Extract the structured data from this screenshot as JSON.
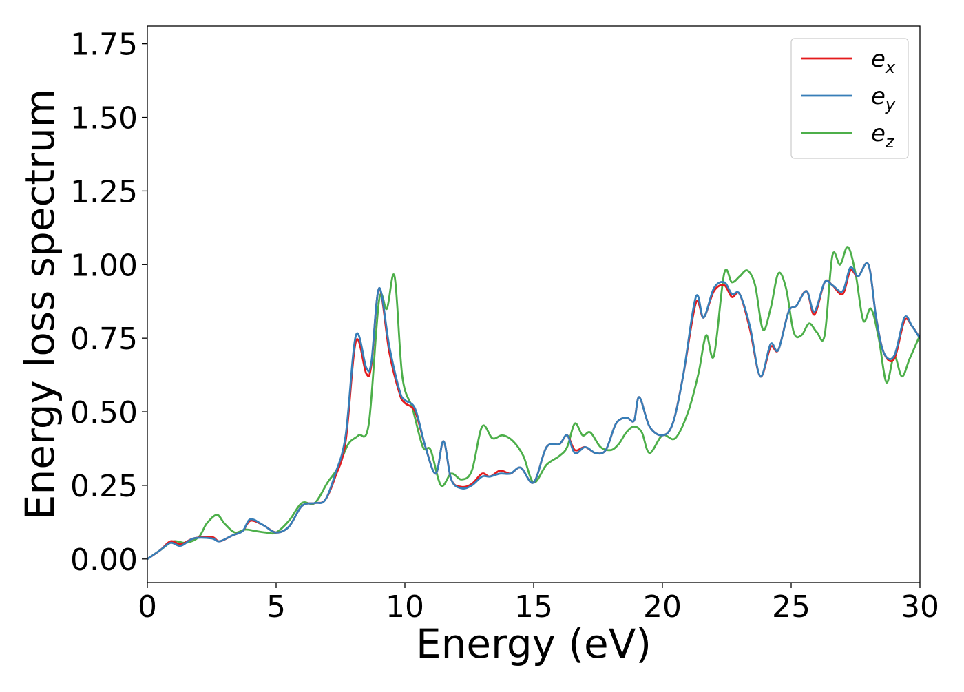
{
  "chart_data": {
    "type": "line",
    "title": "",
    "xlabel": "Energy (eV)",
    "ylabel": "Energy loss spectrum",
    "xlim": [
      0,
      30
    ],
    "ylim": [
      -0.08,
      1.81
    ],
    "xticks": [
      0,
      5,
      10,
      15,
      20,
      25,
      30
    ],
    "xtick_labels": [
      "0",
      "5",
      "10",
      "15",
      "20",
      "25",
      "30"
    ],
    "yticks": [
      0,
      0.25,
      0.5,
      0.75,
      1.0,
      1.25,
      1.5,
      1.75
    ],
    "ytick_labels": [
      "0.00",
      "0.25",
      "0.50",
      "0.75",
      "1.00",
      "1.25",
      "1.50",
      "1.75"
    ],
    "grid": false,
    "legend_position": "top-right",
    "series": [
      {
        "name": "e_x",
        "legend_base": "e",
        "legend_sub": "x",
        "color": "#e41a1c",
        "x": [
          0,
          0.5,
          0.9,
          1.3,
          1.8,
          2.5,
          2.8,
          3.3,
          3.7,
          4.0,
          4.5,
          5.0,
          5.5,
          6.0,
          6.5,
          6.9,
          7.3,
          7.7,
          8.1,
          8.5,
          8.7,
          9.0,
          9.4,
          9.8,
          10.0,
          10.4,
          10.8,
          11.2,
          11.5,
          11.8,
          12.2,
          12.6,
          13.0,
          13.3,
          13.7,
          14.1,
          14.5,
          15.0,
          15.5,
          16.0,
          16.3,
          16.6,
          17.0,
          17.4,
          17.8,
          18.2,
          18.6,
          18.9,
          19.1,
          19.5,
          20.0,
          20.4,
          20.8,
          21.3,
          21.6,
          22.0,
          22.4,
          22.7,
          23.0,
          23.4,
          23.8,
          24.2,
          24.5,
          24.9,
          25.2,
          25.6,
          25.9,
          26.3,
          26.6,
          27.0,
          27.3,
          27.6,
          28.0,
          28.3,
          28.6,
          29.0,
          29.4,
          29.7,
          30.0
        ],
        "y": [
          0,
          0.03,
          0.06,
          0.05,
          0.07,
          0.075,
          0.06,
          0.08,
          0.095,
          0.13,
          0.115,
          0.09,
          0.11,
          0.18,
          0.19,
          0.2,
          0.28,
          0.4,
          0.74,
          0.63,
          0.66,
          0.92,
          0.7,
          0.56,
          0.53,
          0.5,
          0.38,
          0.29,
          0.4,
          0.27,
          0.245,
          0.255,
          0.29,
          0.28,
          0.3,
          0.29,
          0.31,
          0.26,
          0.38,
          0.39,
          0.42,
          0.37,
          0.38,
          0.36,
          0.37,
          0.46,
          0.48,
          0.47,
          0.55,
          0.45,
          0.42,
          0.46,
          0.62,
          0.87,
          0.82,
          0.91,
          0.93,
          0.89,
          0.9,
          0.78,
          0.62,
          0.72,
          0.71,
          0.84,
          0.86,
          0.91,
          0.83,
          0.94,
          0.93,
          0.9,
          0.98,
          0.96,
          1.0,
          0.82,
          0.7,
          0.68,
          0.81,
          0.79,
          0.75
        ]
      },
      {
        "name": "e_y",
        "legend_base": "e",
        "legend_sub": "y",
        "color": "#377eb8",
        "x": [
          0,
          0.5,
          0.9,
          1.3,
          1.8,
          2.5,
          2.8,
          3.3,
          3.7,
          4.0,
          4.5,
          5.0,
          5.5,
          6.0,
          6.5,
          6.9,
          7.3,
          7.7,
          8.1,
          8.5,
          8.7,
          9.0,
          9.4,
          9.8,
          10.0,
          10.4,
          10.8,
          11.2,
          11.5,
          11.8,
          12.2,
          12.6,
          13.0,
          13.3,
          13.7,
          14.1,
          14.5,
          15.0,
          15.5,
          16.0,
          16.3,
          16.6,
          17.0,
          17.4,
          17.8,
          18.2,
          18.6,
          18.9,
          19.1,
          19.5,
          20.0,
          20.4,
          20.8,
          21.3,
          21.6,
          22.0,
          22.4,
          22.7,
          23.0,
          23.4,
          23.8,
          24.2,
          24.5,
          24.9,
          25.2,
          25.6,
          25.9,
          26.3,
          26.6,
          27.0,
          27.3,
          27.6,
          28.0,
          28.3,
          28.6,
          29.0,
          29.4,
          29.7,
          30.0
        ],
        "y": [
          0,
          0.03,
          0.055,
          0.045,
          0.07,
          0.07,
          0.06,
          0.08,
          0.095,
          0.135,
          0.115,
          0.09,
          0.11,
          0.18,
          0.19,
          0.2,
          0.29,
          0.42,
          0.76,
          0.65,
          0.67,
          0.92,
          0.72,
          0.57,
          0.54,
          0.51,
          0.38,
          0.29,
          0.4,
          0.27,
          0.24,
          0.25,
          0.28,
          0.28,
          0.29,
          0.29,
          0.31,
          0.26,
          0.38,
          0.39,
          0.42,
          0.36,
          0.38,
          0.36,
          0.37,
          0.46,
          0.48,
          0.47,
          0.55,
          0.45,
          0.42,
          0.46,
          0.62,
          0.89,
          0.82,
          0.92,
          0.94,
          0.9,
          0.9,
          0.79,
          0.62,
          0.73,
          0.71,
          0.84,
          0.86,
          0.91,
          0.84,
          0.94,
          0.93,
          0.91,
          0.99,
          0.96,
          1.0,
          0.82,
          0.7,
          0.69,
          0.82,
          0.79,
          0.75
        ]
      },
      {
        "name": "e_z",
        "legend_base": "e",
        "legend_sub": "z",
        "color": "#4daf4a",
        "x": [
          0,
          0.5,
          1.0,
          1.5,
          2.0,
          2.3,
          2.7,
          3.0,
          3.4,
          3.8,
          4.2,
          4.6,
          5.0,
          5.5,
          6.0,
          6.5,
          7.0,
          7.4,
          7.8,
          8.2,
          8.6,
          9.0,
          9.3,
          9.6,
          9.9,
          10.3,
          10.7,
          11.0,
          11.4,
          11.8,
          12.2,
          12.6,
          13.0,
          13.4,
          13.8,
          14.2,
          14.6,
          15.0,
          15.5,
          16.0,
          16.3,
          16.6,
          16.9,
          17.2,
          17.6,
          18.0,
          18.3,
          18.6,
          18.9,
          19.2,
          19.5,
          20.0,
          20.5,
          21.0,
          21.4,
          21.7,
          22.0,
          22.4,
          22.7,
          23.0,
          23.3,
          23.6,
          23.9,
          24.2,
          24.5,
          24.8,
          25.1,
          25.4,
          25.7,
          26.0,
          26.3,
          26.6,
          26.9,
          27.2,
          27.5,
          27.8,
          28.1,
          28.4,
          28.7,
          29.0,
          29.3,
          29.6,
          30.0
        ],
        "y": [
          0,
          0.03,
          0.06,
          0.055,
          0.075,
          0.12,
          0.15,
          0.12,
          0.09,
          0.1,
          0.095,
          0.09,
          0.09,
          0.13,
          0.19,
          0.19,
          0.26,
          0.31,
          0.39,
          0.42,
          0.46,
          0.88,
          0.85,
          0.96,
          0.62,
          0.51,
          0.38,
          0.37,
          0.25,
          0.29,
          0.27,
          0.3,
          0.45,
          0.41,
          0.42,
          0.4,
          0.35,
          0.26,
          0.32,
          0.35,
          0.38,
          0.46,
          0.42,
          0.43,
          0.38,
          0.37,
          0.39,
          0.43,
          0.45,
          0.43,
          0.36,
          0.42,
          0.41,
          0.5,
          0.63,
          0.76,
          0.69,
          0.97,
          0.94,
          0.96,
          0.98,
          0.93,
          0.78,
          0.85,
          0.97,
          0.92,
          0.77,
          0.76,
          0.8,
          0.77,
          0.76,
          1.03,
          1.0,
          1.06,
          0.97,
          0.81,
          0.85,
          0.75,
          0.6,
          0.69,
          0.62,
          0.68,
          0.76
        ]
      }
    ]
  }
}
